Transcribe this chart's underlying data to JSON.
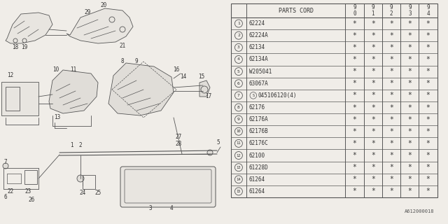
{
  "bg_color": "#f0ede8",
  "table_bg": "#f0ede8",
  "line_color": "#555555",
  "table_line_color": "#555555",
  "rows": [
    [
      "1",
      "62224"
    ],
    [
      "2",
      "62224A"
    ],
    [
      "3",
      "62134"
    ],
    [
      "4",
      "62134A"
    ],
    [
      "5",
      "W205041"
    ],
    [
      "6",
      "63067A"
    ],
    [
      "7",
      "S045106120(4)"
    ],
    [
      "8",
      "62176"
    ],
    [
      "9",
      "62176A"
    ],
    [
      "10",
      "62176B"
    ],
    [
      "11",
      "62176C"
    ],
    [
      "12",
      "62100"
    ],
    [
      "13",
      "61228D"
    ],
    [
      "14",
      "61264"
    ],
    [
      "15",
      "61264"
    ]
  ],
  "footer_code": "A612000018",
  "year_headers": [
    "9\n0",
    "9\n1",
    "9\n2",
    "9\n3",
    "9\n4"
  ]
}
